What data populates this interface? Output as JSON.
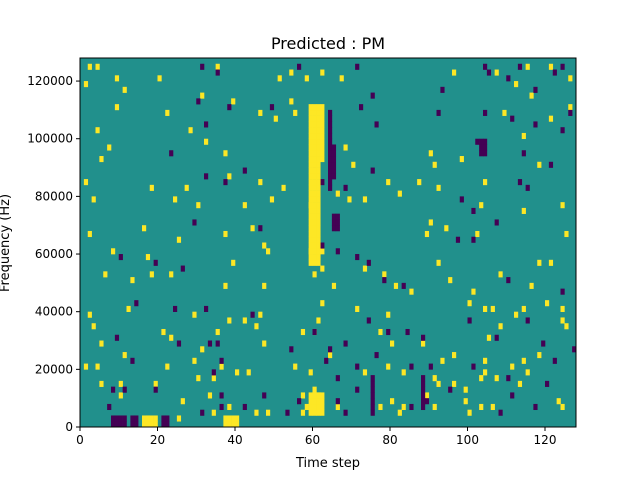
{
  "chart_data": {
    "type": "heatmap",
    "title": "Predicted : PM",
    "xlabel": "Time step",
    "ylabel": "Frequency (Hz)",
    "xlim": [
      0,
      128
    ],
    "ylim": [
      0,
      128000
    ],
    "x_ticks": [
      0,
      20,
      40,
      60,
      80,
      100,
      120
    ],
    "x_tick_labels": [
      "0",
      "20",
      "40",
      "60",
      "80",
      "100",
      "120"
    ],
    "y_ticks": [
      0,
      20000,
      40000,
      60000,
      80000,
      100000,
      120000
    ],
    "y_tick_labels": [
      "0",
      "20000",
      "40000",
      "60000",
      "80000",
      "100000",
      "120000"
    ],
    "n_time_steps": 128,
    "n_frequency_bins": 64,
    "colormap": "viridis",
    "colors": {
      "low": "#440154",
      "mid": "#21908c",
      "high": "#fde725"
    },
    "background_level": "mid",
    "grid": false,
    "cells_high": [
      [
        2,
        62
      ],
      [
        4,
        62
      ],
      [
        9,
        60
      ],
      [
        20,
        60
      ],
      [
        35,
        62
      ],
      [
        51,
        60
      ],
      [
        54,
        61
      ],
      [
        58,
        60
      ],
      [
        62,
        61
      ],
      [
        67,
        60
      ],
      [
        96,
        61
      ],
      [
        115,
        62
      ],
      [
        1,
        59
      ],
      [
        11,
        58
      ],
      [
        31,
        57
      ],
      [
        39,
        56
      ],
      [
        46,
        54
      ],
      [
        107,
        61
      ],
      [
        112,
        59
      ],
      [
        121,
        62
      ],
      [
        126,
        55
      ],
      [
        9,
        55
      ],
      [
        22,
        54
      ],
      [
        28,
        51
      ],
      [
        50,
        53
      ],
      [
        55,
        54
      ],
      [
        54,
        56
      ],
      [
        109,
        54
      ],
      [
        116,
        57
      ],
      [
        121,
        53
      ],
      [
        126,
        60
      ],
      [
        4,
        51
      ],
      [
        7,
        48
      ],
      [
        32,
        49
      ],
      [
        37,
        47
      ],
      [
        60,
        48
      ],
      [
        68,
        48
      ],
      [
        70,
        45
      ],
      [
        79,
        42
      ],
      [
        90,
        47
      ],
      [
        91,
        45
      ],
      [
        92,
        41
      ],
      [
        98,
        46
      ],
      [
        104,
        42
      ],
      [
        114,
        50
      ],
      [
        118,
        45
      ],
      [
        1,
        42
      ],
      [
        3,
        39
      ],
      [
        5,
        46
      ],
      [
        18,
        41
      ],
      [
        24,
        39
      ],
      [
        27,
        41
      ],
      [
        30,
        38
      ],
      [
        38,
        43
      ],
      [
        42,
        38
      ],
      [
        46,
        42
      ],
      [
        49,
        39
      ],
      [
        52,
        41
      ],
      [
        59,
        38
      ],
      [
        66,
        40
      ],
      [
        69,
        39
      ],
      [
        73,
        39
      ],
      [
        82,
        40
      ],
      [
        87,
        42
      ],
      [
        90,
        35
      ],
      [
        94,
        34
      ],
      [
        103,
        38
      ],
      [
        114,
        37
      ],
      [
        124,
        38
      ],
      [
        2,
        33
      ],
      [
        16,
        34
      ],
      [
        25,
        32
      ],
      [
        37,
        33
      ],
      [
        44,
        34
      ],
      [
        48,
        30
      ],
      [
        47,
        31
      ],
      [
        59,
        30
      ],
      [
        62,
        30
      ],
      [
        89,
        33
      ],
      [
        102,
        33
      ],
      [
        125,
        33
      ],
      [
        8,
        30
      ],
      [
        17,
        29
      ],
      [
        39,
        28
      ],
      [
        61,
        29
      ],
      [
        73,
        27
      ],
      [
        92,
        28
      ],
      [
        95,
        25
      ],
      [
        118,
        28
      ],
      [
        121,
        28
      ],
      [
        6,
        26
      ],
      [
        13,
        25
      ],
      [
        18,
        26
      ],
      [
        23,
        26
      ],
      [
        37,
        24
      ],
      [
        47,
        24
      ],
      [
        60,
        26
      ],
      [
        62,
        27
      ],
      [
        65,
        24
      ],
      [
        78,
        26
      ],
      [
        81,
        24
      ],
      [
        85,
        23
      ],
      [
        101,
        23
      ],
      [
        108,
        26
      ],
      [
        116,
        24
      ],
      [
        2,
        19
      ],
      [
        12,
        20
      ],
      [
        29,
        19
      ],
      [
        38,
        18
      ],
      [
        42,
        18
      ],
      [
        46,
        19
      ],
      [
        62,
        21
      ],
      [
        71,
        20
      ],
      [
        79,
        19
      ],
      [
        100,
        21
      ],
      [
        104,
        20
      ],
      [
        106,
        20
      ],
      [
        112,
        19
      ],
      [
        114,
        20
      ],
      [
        120,
        21
      ],
      [
        124,
        20
      ],
      [
        3,
        17
      ],
      [
        5,
        14
      ],
      [
        21,
        16
      ],
      [
        23,
        15
      ],
      [
        31,
        13
      ],
      [
        35,
        16
      ],
      [
        45,
        17
      ],
      [
        47,
        14
      ],
      [
        57,
        16
      ],
      [
        60,
        16
      ],
      [
        61,
        18
      ],
      [
        64,
        12
      ],
      [
        77,
        16
      ],
      [
        80,
        14
      ],
      [
        88,
        14
      ],
      [
        96,
        12
      ],
      [
        105,
        15
      ],
      [
        108,
        17
      ],
      [
        124,
        18
      ],
      [
        125,
        17
      ],
      [
        1,
        10
      ],
      [
        4,
        10
      ],
      [
        11,
        12
      ],
      [
        22,
        10
      ],
      [
        29,
        11
      ],
      [
        36,
        10
      ],
      [
        40,
        9
      ],
      [
        55,
        10
      ],
      [
        79,
        10
      ],
      [
        83,
        9
      ],
      [
        93,
        11
      ],
      [
        104,
        11
      ],
      [
        111,
        10
      ],
      [
        114,
        11
      ],
      [
        118,
        12
      ],
      [
        5,
        7
      ],
      [
        10,
        7
      ],
      [
        19,
        7
      ],
      [
        30,
        8
      ],
      [
        34,
        8
      ],
      [
        43,
        9
      ],
      [
        59,
        9
      ],
      [
        73,
        9
      ],
      [
        91,
        8
      ],
      [
        92,
        7
      ],
      [
        96,
        7
      ],
      [
        99,
        6
      ],
      [
        103,
        8
      ],
      [
        104,
        9
      ],
      [
        107,
        8
      ],
      [
        113,
        7
      ],
      [
        115,
        9
      ],
      [
        10,
        5
      ],
      [
        26,
        4
      ],
      [
        33,
        5
      ],
      [
        38,
        3
      ],
      [
        57,
        5
      ],
      [
        60,
        6
      ],
      [
        61,
        5
      ],
      [
        66,
        3
      ],
      [
        80,
        4
      ],
      [
        82,
        2
      ],
      [
        83,
        3
      ],
      [
        89,
        5
      ],
      [
        91,
        3
      ],
      [
        99,
        4
      ],
      [
        106,
        3
      ],
      [
        123,
        4
      ],
      [
        124,
        3
      ],
      [
        17,
        1
      ],
      [
        25,
        1
      ],
      [
        34,
        2
      ],
      [
        45,
        2
      ],
      [
        48,
        2
      ],
      [
        57,
        2
      ],
      [
        58,
        3
      ],
      [
        77,
        3
      ],
      [
        100,
        2
      ],
      [
        103,
        3
      ]
    ],
    "cells_low": [
      [
        31,
        62
      ],
      [
        56,
        62
      ],
      [
        71,
        62
      ],
      [
        104,
        62
      ],
      [
        113,
        62
      ],
      [
        124,
        62
      ],
      [
        35,
        61
      ],
      [
        105,
        61
      ],
      [
        110,
        60
      ],
      [
        122,
        61
      ],
      [
        117,
        58
      ],
      [
        93,
        58
      ],
      [
        30,
        56
      ],
      [
        38,
        55
      ],
      [
        75,
        57
      ],
      [
        49,
        55
      ],
      [
        72,
        55
      ],
      [
        92,
        54
      ],
      [
        104,
        54
      ],
      [
        126,
        54
      ],
      [
        32,
        52
      ],
      [
        76,
        52
      ],
      [
        111,
        53
      ],
      [
        117,
        52
      ],
      [
        124,
        51
      ],
      [
        102,
        49
      ],
      [
        114,
        47
      ],
      [
        121,
        45
      ],
      [
        23,
        47
      ],
      [
        42,
        44
      ],
      [
        60,
        44
      ],
      [
        75,
        44
      ],
      [
        32,
        43
      ],
      [
        37,
        42
      ],
      [
        62,
        42
      ],
      [
        68,
        41
      ],
      [
        115,
        41
      ],
      [
        98,
        39
      ],
      [
        101,
        37
      ],
      [
        107,
        35
      ],
      [
        113,
        42
      ],
      [
        29,
        35
      ],
      [
        46,
        34
      ],
      [
        97,
        32
      ],
      [
        101,
        32
      ],
      [
        10,
        29
      ],
      [
        19,
        28
      ],
      [
        26,
        27
      ],
      [
        62,
        31
      ],
      [
        66,
        30
      ],
      [
        71,
        29
      ],
      [
        74,
        28
      ],
      [
        78,
        25
      ],
      [
        83,
        24
      ],
      [
        110,
        25
      ],
      [
        124,
        23
      ],
      [
        14,
        21
      ],
      [
        24,
        20
      ],
      [
        32,
        20
      ],
      [
        44,
        19
      ],
      [
        60,
        16
      ],
      [
        68,
        14
      ],
      [
        74,
        18
      ],
      [
        79,
        16
      ],
      [
        84,
        16
      ],
      [
        100,
        18
      ],
      [
        115,
        18
      ],
      [
        9,
        15
      ],
      [
        25,
        14
      ],
      [
        33,
        14
      ],
      [
        35,
        14
      ],
      [
        54,
        13
      ],
      [
        64,
        13
      ],
      [
        76,
        12
      ],
      [
        88,
        15
      ],
      [
        107,
        15
      ],
      [
        119,
        14
      ],
      [
        127,
        13
      ],
      [
        13,
        11
      ],
      [
        34,
        9
      ],
      [
        36,
        11
      ],
      [
        63,
        11
      ],
      [
        66,
        8
      ],
      [
        71,
        10
      ],
      [
        85,
        10
      ],
      [
        90,
        10
      ],
      [
        101,
        10
      ],
      [
        110,
        8
      ],
      [
        122,
        11
      ],
      [
        8,
        6
      ],
      [
        11,
        6
      ],
      [
        19,
        6
      ],
      [
        36,
        5
      ],
      [
        47,
        5
      ],
      [
        56,
        4
      ],
      [
        71,
        6
      ],
      [
        89,
        4
      ],
      [
        95,
        6
      ],
      [
        111,
        5
      ],
      [
        120,
        7
      ],
      [
        7,
        3
      ],
      [
        31,
        2
      ],
      [
        36,
        3
      ],
      [
        42,
        3
      ],
      [
        53,
        2
      ],
      [
        66,
        4
      ],
      [
        68,
        2
      ],
      [
        85,
        3
      ],
      [
        108,
        2
      ],
      [
        117,
        3
      ]
    ],
    "regions_high": [
      {
        "x": [
          59,
          62
        ],
        "y_bins": [
          28,
          55
        ]
      },
      {
        "x": [
          62,
          63
        ],
        "y_bins": [
          46,
          55
        ]
      },
      {
        "x": [
          59,
          63
        ],
        "y_bins": [
          2,
          5
        ]
      },
      {
        "x": [
          16,
          20
        ],
        "y_bins": [
          0,
          1
        ]
      },
      {
        "x": [
          37,
          41
        ],
        "y_bins": [
          0,
          1
        ]
      }
    ],
    "regions_low": [
      {
        "x": [
          64,
          65
        ],
        "y_bins": [
          41,
          54
        ]
      },
      {
        "x": [
          65,
          66
        ],
        "y_bins": [
          43,
          48
        ]
      },
      {
        "x": [
          65,
          67
        ],
        "y_bins": [
          34,
          36
        ]
      },
      {
        "x": [
          8,
          12
        ],
        "y_bins": [
          0,
          1
        ]
      },
      {
        "x": [
          13,
          15
        ],
        "y_bins": [
          0,
          1
        ]
      },
      {
        "x": [
          21,
          23
        ],
        "y_bins": [
          0,
          1
        ]
      },
      {
        "x": [
          103,
          105
        ],
        "y_bins": [
          47,
          49
        ]
      },
      {
        "x": [
          75,
          76
        ],
        "y_bins": [
          2,
          8
        ]
      },
      {
        "x": [
          88,
          89
        ],
        "y_bins": [
          3,
          8
        ]
      }
    ]
  }
}
